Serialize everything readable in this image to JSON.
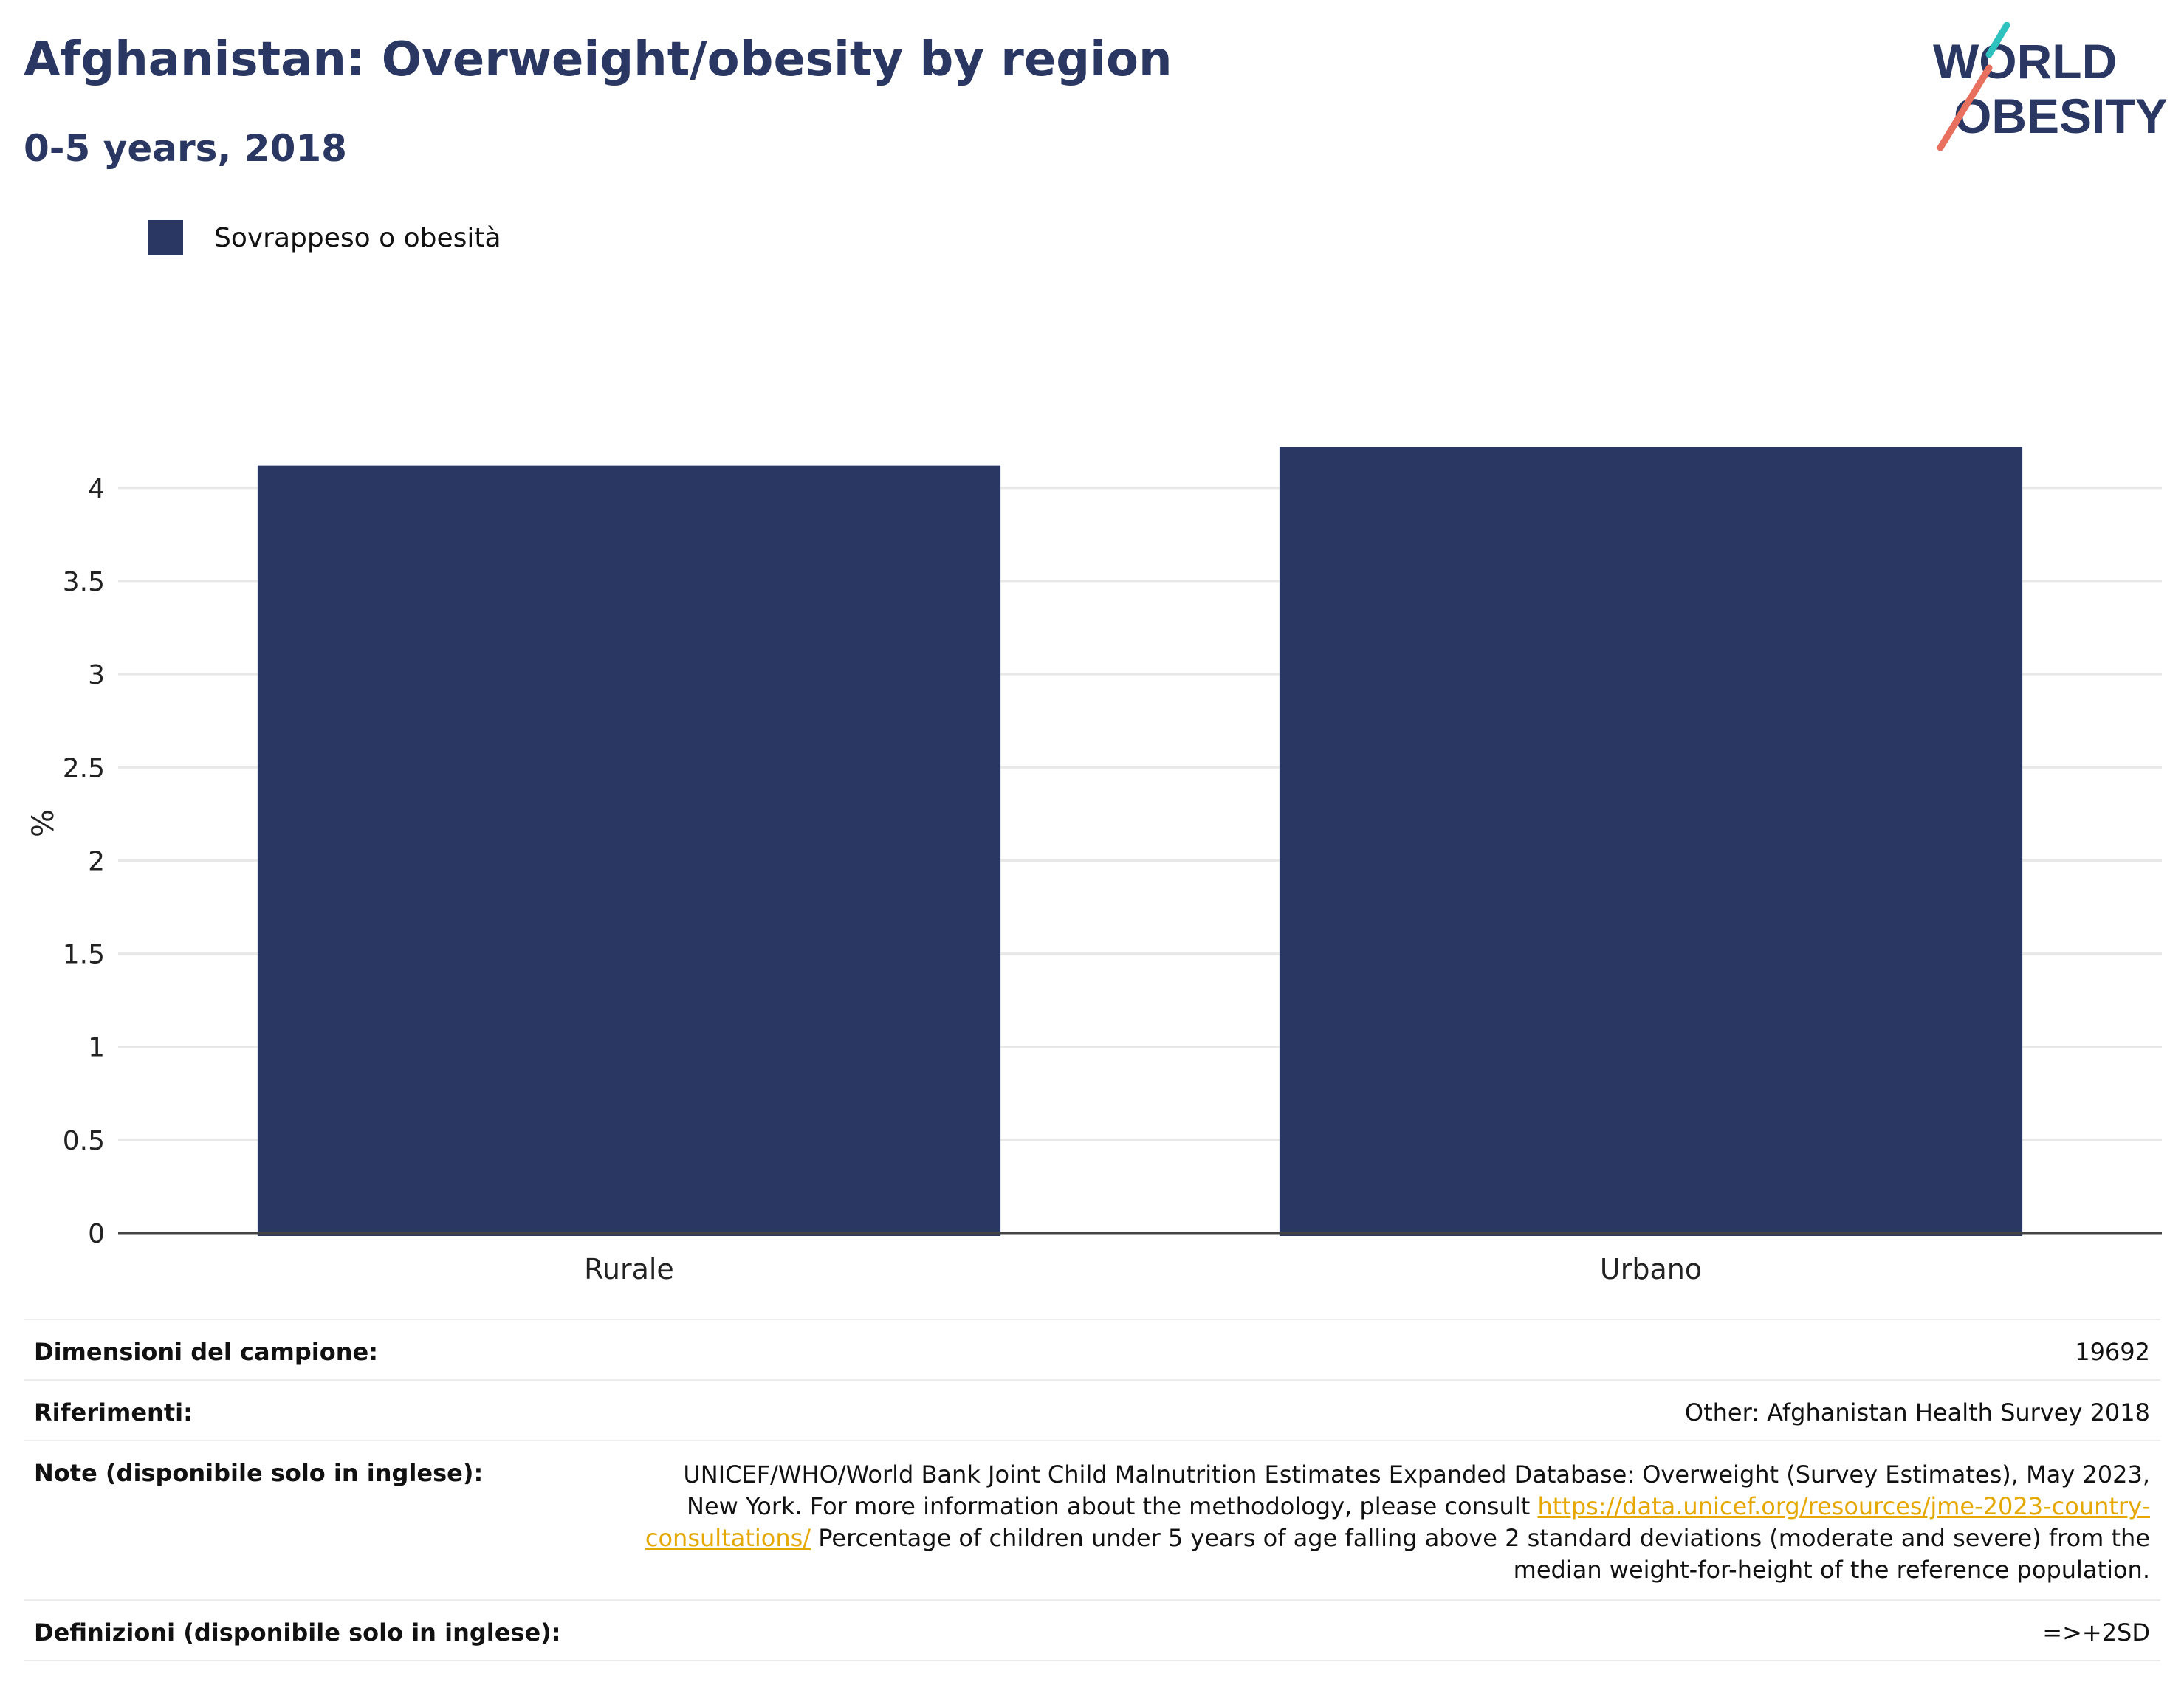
{
  "header": {
    "title": "Afghanistan: Overweight/obesity by region",
    "subtitle": "0-5 years, 2018"
  },
  "logo": {
    "line1": "WORLD",
    "line2": "OBESITY"
  },
  "colors": {
    "bar": "#2a3762",
    "title": "#2a3762",
    "link": "#e5a800",
    "logo_teal": "#2fc1bd",
    "logo_coral": "#e8705f"
  },
  "chart_data": {
    "type": "bar",
    "title": "Afghanistan: Overweight/obesity by region",
    "subtitle": "0-5 years, 2018",
    "categories": [
      "Rurale",
      "Urbano"
    ],
    "series": [
      {
        "name": "Sovrappeso o obesità",
        "values": [
          4.12,
          4.22
        ]
      }
    ],
    "ylabel": "%",
    "xlabel": "",
    "ylim": [
      0,
      4.4
    ],
    "yticks": [
      0,
      0.5,
      1,
      1.5,
      2,
      2.5,
      3,
      3.5,
      4
    ],
    "ytick_labels": [
      "0",
      "0.5",
      "1",
      "1.5",
      "2",
      "2.5",
      "3",
      "3.5",
      "4"
    ],
    "grid": true,
    "legend_position": "top-left"
  },
  "info": {
    "sample_label": "Dimensioni del campione:",
    "sample_value": "19692",
    "refs_label": "Riferimenti:",
    "refs_value": "Other: Afghanistan Health Survey 2018",
    "notes_label": "Note (disponibile solo in inglese):",
    "notes_text_1": "UNICEF/WHO/World Bank Joint Child Malnutrition Estimates Expanded Database: Overweight (Survey Estimates), May 2023, New York. For more information about the methodology, please consult ",
    "notes_link": "https://data.unicef.org/resources/jme-2023-country-consultations/",
    "notes_text_2": " Percentage of children under 5 years of age falling above 2 standard deviations (moderate and severe) from the median weight-for-height of the reference population.",
    "defs_label": "Definizioni (disponibile solo in inglese):",
    "defs_value": "=>+2SD"
  }
}
